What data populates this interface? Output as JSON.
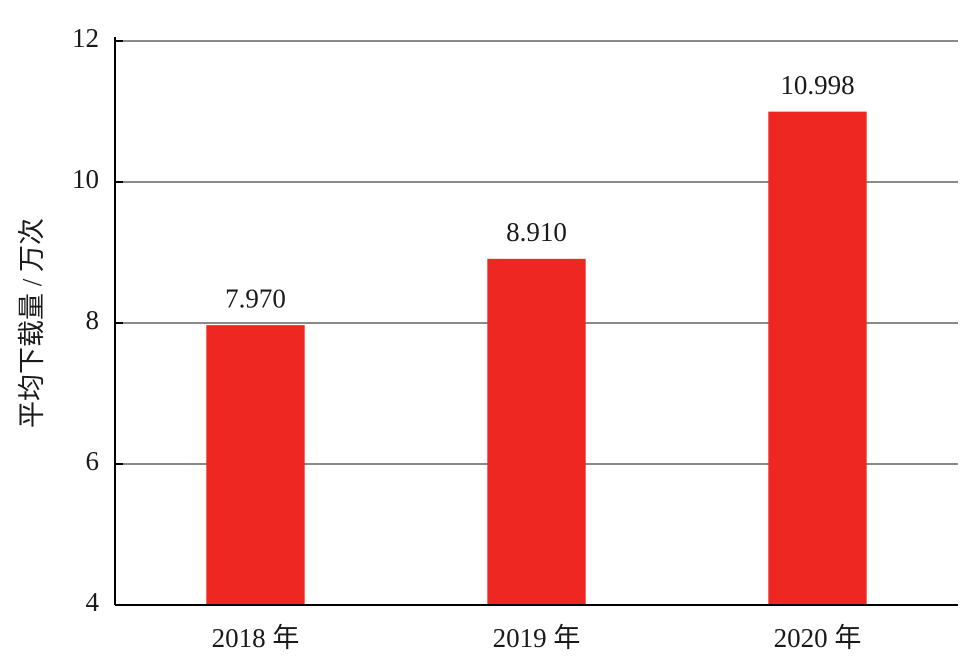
{
  "chart_data": {
    "type": "bar",
    "y_label": "平均下载量 / 万次",
    "categories": [
      "2018 年",
      "2019 年",
      "2020 年"
    ],
    "values": [
      7.97,
      8.91,
      10.998
    ],
    "value_labels": [
      "7.970",
      "8.910",
      "10.998"
    ],
    "color": "#ee2722",
    "ylim": [
      4,
      12
    ],
    "yticks": [
      4,
      6,
      8,
      10,
      12
    ],
    "grid": true
  }
}
